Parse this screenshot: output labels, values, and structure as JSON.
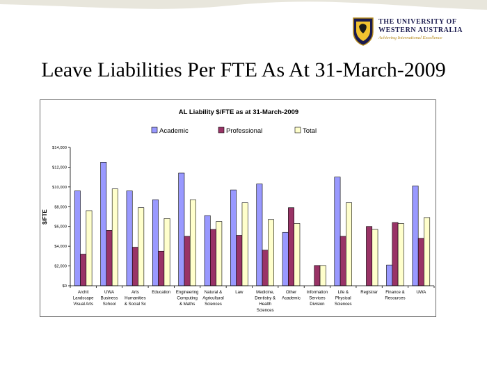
{
  "slide": {
    "title": "Leave Liabilities Per FTE As At 31-March-2009"
  },
  "logo": {
    "line1": "THE UNIVERSITY OF",
    "line2": "WESTERN AUSTRALIA",
    "tagline": "Achieving International Excellence"
  },
  "colors": {
    "academic": "#9999ff",
    "professional": "#993366",
    "total": "#ffffcc",
    "slide_wave": "#e8e6dc"
  },
  "chart_data": {
    "type": "bar",
    "title": "AL Liability $/FTE as at 31-March-2009",
    "xlabel": "",
    "ylabel": "$/FTE",
    "ylim": [
      0,
      14000
    ],
    "yticks": [
      "$0",
      "$2,000",
      "$4,000",
      "$6,000",
      "$8,000",
      "$10,000",
      "$12,000",
      "$14,000"
    ],
    "grid": false,
    "legend": "top",
    "categories": [
      [
        "Archit",
        "Landscape",
        "Visual Arts"
      ],
      [
        "UWA",
        "Business",
        "School"
      ],
      [
        "Arts",
        "Humanities",
        "& Social Sc"
      ],
      [
        "Education"
      ],
      [
        "Engineering",
        "Computing",
        "& Maths"
      ],
      [
        "Natural &",
        "Agricultural",
        "Sciences"
      ],
      [
        "Law"
      ],
      [
        "Medicine,",
        "Dentistry &",
        "Health",
        "Sciences"
      ],
      [
        "Other",
        "Academic"
      ],
      [
        "Information",
        "Services",
        "Division"
      ],
      [
        "Life &",
        "Physical",
        "Sciences"
      ],
      [
        "Registrar"
      ],
      [
        "Finance &",
        "Resources"
      ],
      [
        "UWA"
      ]
    ],
    "series": [
      {
        "name": "Academic",
        "values": [
          9600,
          12500,
          9600,
          8700,
          11400,
          7100,
          9700,
          10300,
          5400,
          null,
          11000,
          null,
          2100,
          10100
        ]
      },
      {
        "name": "Professional",
        "values": [
          3200,
          5600,
          3900,
          3500,
          5000,
          5700,
          5100,
          3600,
          7900,
          2050,
          5000,
          6000,
          6400,
          4800
        ]
      },
      {
        "name": "Total",
        "values": [
          7600,
          9800,
          7900,
          6800,
          8700,
          6500,
          8400,
          6700,
          6300,
          2050,
          8400,
          5700,
          6300,
          6900
        ]
      }
    ]
  }
}
